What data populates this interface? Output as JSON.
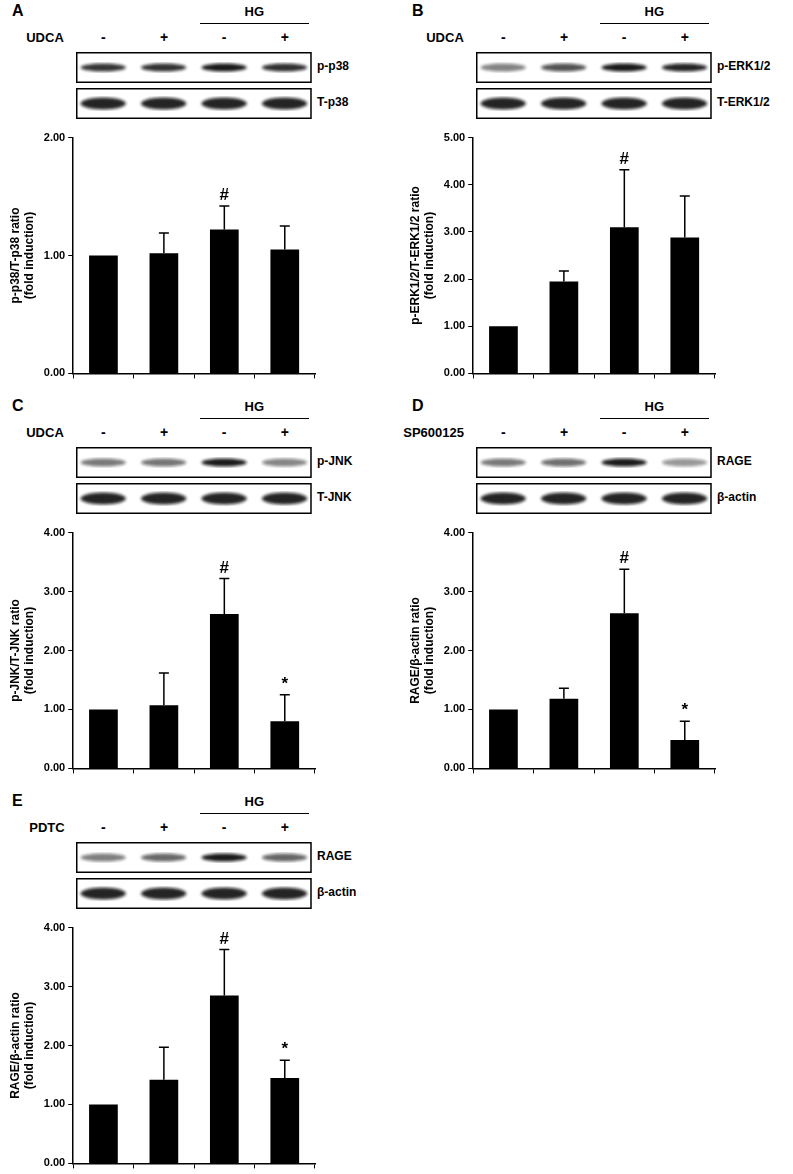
{
  "chart_data": [
    {
      "type": "bar",
      "panel": "A",
      "treatment": "UDCA",
      "treatment_signs": [
        "-",
        "+",
        "-",
        "+"
      ],
      "condition": "HG",
      "blots": [
        "p-p38",
        "T-p38"
      ],
      "y_label": [
        "p-p38/T-p38 ratio",
        "(fold induction)"
      ],
      "categories": [
        null,
        null,
        null,
        null
      ],
      "values": [
        1.0,
        1.02,
        1.22,
        1.05
      ],
      "errors": [
        0,
        0.17,
        0.2,
        0.2
      ],
      "annotations": [
        null,
        null,
        "#",
        null
      ],
      "color": "#000000",
      "ylim": [
        0,
        2
      ],
      "yticks": [
        {
          "value": 0,
          "label": "0.00"
        },
        {
          "value": 1,
          "label": "1.00"
        },
        {
          "value": 2,
          "label": "2.00"
        }
      ],
      "grid": false,
      "tick_labels": "y"
    },
    {
      "type": "bar",
      "panel": "B",
      "treatment": "UDCA",
      "treatment_signs": [
        "-",
        "+",
        "-",
        "+"
      ],
      "condition": "HG",
      "blots": [
        "p-ERK1/2",
        "T-ERK1/2"
      ],
      "y_label": [
        "p-ERK1/2/T-ERK1/2 ratio",
        "(fold induction)"
      ],
      "categories": [
        null,
        null,
        null,
        null
      ],
      "values": [
        1.0,
        1.95,
        3.1,
        2.88
      ],
      "errors": [
        0,
        0.22,
        1.22,
        0.88
      ],
      "annotations": [
        null,
        null,
        "#",
        null
      ],
      "color": "#000000",
      "ylim": [
        0,
        5
      ],
      "yticks": [
        {
          "value": 0,
          "label": "0.00"
        },
        {
          "value": 1,
          "label": "1.00"
        },
        {
          "value": 2,
          "label": "2.00"
        },
        {
          "value": 3,
          "label": "3.00"
        },
        {
          "value": 4,
          "label": "4.00"
        },
        {
          "value": 5,
          "label": "5.00"
        }
      ],
      "grid": false,
      "tick_labels": "y"
    },
    {
      "type": "bar",
      "panel": "C",
      "treatment": "UDCA",
      "treatment_signs": [
        "-",
        "+",
        "-",
        "+"
      ],
      "condition": "HG",
      "blots": [
        "p-JNK",
        "T-JNK"
      ],
      "y_label": [
        "p-JNK/T-JNK ratio",
        "(fold induction)"
      ],
      "categories": [
        null,
        null,
        null,
        null
      ],
      "values": [
        1.0,
        1.07,
        2.62,
        0.8
      ],
      "errors": [
        0,
        0.55,
        0.6,
        0.45
      ],
      "annotations": [
        null,
        null,
        "#",
        "*"
      ],
      "color": "#000000",
      "ylim": [
        0,
        4
      ],
      "yticks": [
        {
          "value": 0,
          "label": "0.00"
        },
        {
          "value": 1,
          "label": "1.00"
        },
        {
          "value": 2,
          "label": "2.00"
        },
        {
          "value": 3,
          "label": "3.00"
        },
        {
          "value": 4,
          "label": "4.00"
        }
      ],
      "grid": false,
      "tick_labels": "y"
    },
    {
      "type": "bar",
      "panel": "D",
      "treatment": "SP600125",
      "treatment_signs": [
        "-",
        "+",
        "-",
        "+"
      ],
      "condition": "HG",
      "blots": [
        "RAGE",
        "β-actin"
      ],
      "y_label": [
        "RAGE/β-actin ratio",
        "(fold induction)"
      ],
      "categories": [
        null,
        null,
        null,
        null
      ],
      "values": [
        1.0,
        1.18,
        2.63,
        0.48
      ],
      "errors": [
        0,
        0.18,
        0.75,
        0.32
      ],
      "annotations": [
        null,
        null,
        "#",
        "*"
      ],
      "color": "#000000",
      "ylim": [
        0,
        4
      ],
      "yticks": [
        {
          "value": 0,
          "label": "0.00"
        },
        {
          "value": 1,
          "label": "1.00"
        },
        {
          "value": 2,
          "label": "2.00"
        },
        {
          "value": 3,
          "label": "3.00"
        },
        {
          "value": 4,
          "label": "4.00"
        }
      ],
      "grid": false,
      "tick_labels": "y"
    },
    {
      "type": "bar",
      "panel": "E",
      "treatment": "PDTC",
      "treatment_signs": [
        "-",
        "+",
        "-",
        "+"
      ],
      "condition": "HG",
      "blots": [
        "RAGE",
        "β-actin"
      ],
      "y_label": [
        "RAGE/β-actin ratio",
        "(fold induction)"
      ],
      "categories": [
        null,
        null,
        null,
        null
      ],
      "values": [
        1.0,
        1.42,
        2.85,
        1.45
      ],
      "errors": [
        0,
        0.55,
        0.78,
        0.3
      ],
      "annotations": [
        null,
        null,
        "#",
        "*"
      ],
      "color": "#000000",
      "ylim": [
        0,
        4
      ],
      "yticks": [
        {
          "value": 0,
          "label": "0.00"
        },
        {
          "value": 1,
          "label": "1.00"
        },
        {
          "value": 2,
          "label": "2.00"
        },
        {
          "value": 3,
          "label": "3.00"
        },
        {
          "value": 4,
          "label": "4.00"
        }
      ],
      "grid": false,
      "tick_labels": "y"
    }
  ]
}
